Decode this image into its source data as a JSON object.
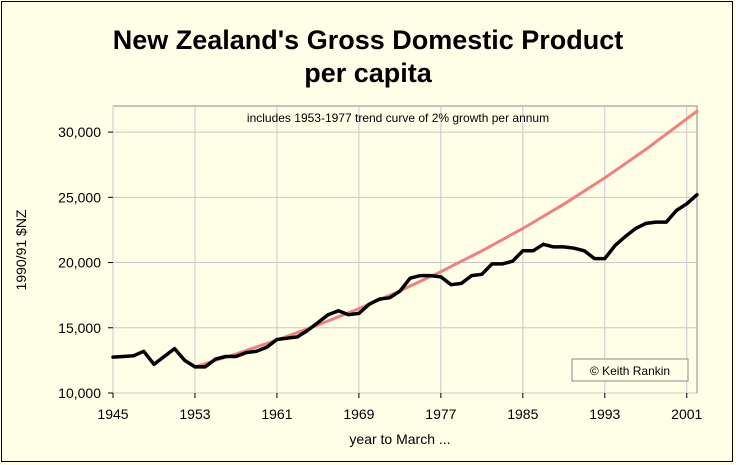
{
  "chart_data": {
    "type": "line",
    "title_line1": "New Zealand's Gross Domestic Product",
    "title_line2": "per capita",
    "subtitle": "includes 1953-1977 trend curve of 2% growth per annum",
    "ylabel": "1990/91 $NZ",
    "xlabel": "year to March ...",
    "credit": "© Keith Rankin",
    "xlim": [
      1945,
      2002
    ],
    "ylim": [
      10000,
      32000
    ],
    "x_ticks": [
      "1945",
      "1953",
      "1961",
      "1969",
      "1977",
      "1985",
      "1993",
      "2001"
    ],
    "y_ticks": [
      "10,000",
      "15,000",
      "20,000",
      "25,000",
      "30,000"
    ],
    "grid": true,
    "colors": {
      "gdp": "#000000",
      "trend": "#f08080",
      "plot_bg": "#ffffe8"
    },
    "series": [
      {
        "key": "gdp",
        "x": [
          1945,
          1946,
          1947,
          1948,
          1949,
          1950,
          1951,
          1952,
          1953,
          1954,
          1955,
          1956,
          1957,
          1958,
          1959,
          1960,
          1961,
          1962,
          1963,
          1964,
          1965,
          1966,
          1967,
          1968,
          1969,
          1970,
          1971,
          1972,
          1973,
          1974,
          1975,
          1976,
          1977,
          1978,
          1979,
          1980,
          1981,
          1982,
          1983,
          1984,
          1985,
          1986,
          1987,
          1988,
          1989,
          1990,
          1991,
          1992,
          1993,
          1994,
          1995,
          1996,
          1997,
          1998,
          1999,
          2000,
          2001,
          2002
        ],
        "values": [
          12750,
          12800,
          12850,
          13200,
          12200,
          12800,
          13400,
          12500,
          12000,
          12000,
          12600,
          12800,
          12800,
          13100,
          13200,
          13500,
          14100,
          14200,
          14300,
          14800,
          15400,
          16000,
          16300,
          16000,
          16100,
          16800,
          17200,
          17300,
          17800,
          18800,
          19000,
          19000,
          18900,
          18300,
          18400,
          19000,
          19100,
          19900,
          19900,
          20100,
          20900,
          20900,
          21400,
          21200,
          21200,
          21100,
          20900,
          20300,
          20300,
          21300,
          22000,
          22600,
          23000,
          23100,
          23100,
          24000,
          24500,
          25200
        ]
      },
      {
        "key": "trend",
        "x": [
          1953,
          1957,
          1961,
          1965,
          1969,
          1973,
          1977,
          1981,
          1985,
          1989,
          1993,
          1997,
          2002
        ],
        "values": [
          12000,
          12990,
          14060,
          15210,
          16470,
          17830,
          19300,
          20890,
          22610,
          24470,
          26490,
          28670,
          31600
        ]
      }
    ]
  }
}
